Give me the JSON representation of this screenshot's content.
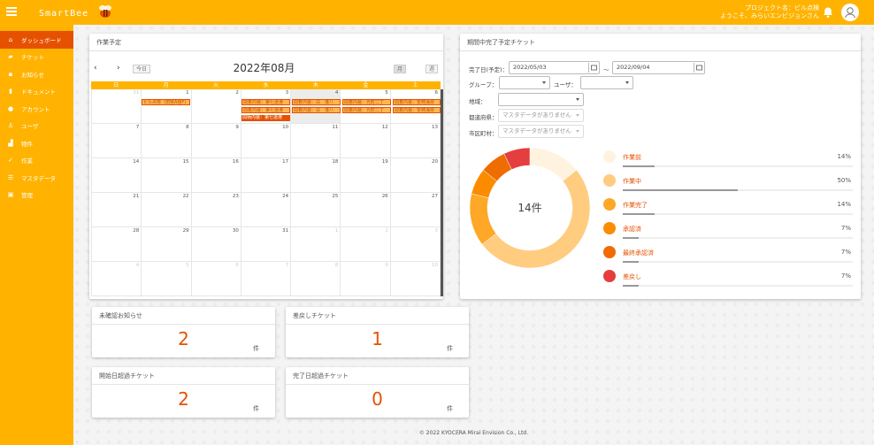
{
  "header": {
    "logo_text": "SmartBee",
    "project_line": "プロジェクト名：ビル点検",
    "welcome_line": "ようこそ、みらいエンビジョンさん"
  },
  "sidebar": {
    "items": [
      {
        "label": "ダッシュボード",
        "icon": "home-icon"
      },
      {
        "label": "チケット",
        "icon": "ticket-icon"
      },
      {
        "label": "お知らせ",
        "icon": "chat-icon"
      },
      {
        "label": "ドキュメント",
        "icon": "document-icon"
      },
      {
        "label": "アカウント",
        "icon": "account-icon"
      },
      {
        "label": "ユーザ",
        "icon": "user-icon"
      },
      {
        "label": "物件",
        "icon": "building-icon"
      },
      {
        "label": "作業",
        "icon": "check-icon"
      },
      {
        "label": "マスタデータ",
        "icon": "list-icon"
      },
      {
        "label": "管理",
        "icon": "settings-icon"
      }
    ]
  },
  "calendar": {
    "card_title": "作業予定",
    "prev": "‹",
    "next": "›",
    "today_label": "今日",
    "month_title": "2022年08月",
    "month_view_label": "月",
    "week_view_label": "週",
    "weekdays": [
      "日",
      "月",
      "火",
      "水",
      "木",
      "金",
      "土"
    ],
    "weeks": [
      [
        "31",
        "1",
        "2",
        "3",
        "4",
        "5",
        "6"
      ],
      [
        "7",
        "8",
        "9",
        "10",
        "11",
        "12",
        "13"
      ],
      [
        "14",
        "15",
        "16",
        "17",
        "18",
        "19",
        "20"
      ],
      [
        "21",
        "22",
        "23",
        "24",
        "25",
        "26",
        "27"
      ],
      [
        "28",
        "29",
        "30",
        "31",
        "1",
        "2",
        "3"
      ],
      [
        "4",
        "5",
        "6",
        "7",
        "8",
        "9",
        "10"
      ]
    ],
    "events": {
      "e1": "ビル点検（田宮A館F)",
      "e2": "間着内装：第七道港",
      "e3": "間着内装：白　湊八",
      "e4": "間着内装：光町二丁",
      "e5": "間着内装：安崎海翠",
      "e6": "間着内装：第七道港",
      "e7": "間着内装：白　湊八",
      "e8": "間着内装：光町二丁",
      "e9": "間着内装：安崎海翠",
      "e10": "間柄内装：第七道港"
    }
  },
  "period": {
    "card_title": "期間中完了予定チケット",
    "end_date_label": "完了日(予定)：",
    "date_from": "2022/05/03",
    "range_sep": "～",
    "date_to": "2022/09/04",
    "group_label": "グループ：",
    "user_label": "ユーザ：",
    "region_label": "地域：",
    "pref_label": "都道府県：",
    "pref_value": "マスタデータがありません",
    "city_label": "市区町村：",
    "city_value": "マスタデータがありません",
    "center_label": "14件",
    "legend": [
      {
        "label": "作業前",
        "pct": "14%",
        "value": 14,
        "color": "#fff3e0"
      },
      {
        "label": "作業中",
        "pct": "50%",
        "value": 50,
        "color": "#ffcc80"
      },
      {
        "label": "作業完了",
        "pct": "14%",
        "value": 14,
        "color": "#ffa726"
      },
      {
        "label": "承認済",
        "pct": "7%",
        "value": 7,
        "color": "#fb8c00"
      },
      {
        "label": "最終承認済",
        "pct": "7%",
        "value": 7,
        "color": "#ef6c00"
      },
      {
        "label": "差戻し",
        "pct": "7%",
        "value": 7,
        "color": "#e53e3e"
      }
    ]
  },
  "stats": {
    "unconfirmed_title": "未確認お知らせ",
    "unconfirmed_value": "2",
    "returned_title": "差戻しチケット",
    "returned_value": "1",
    "start_over_title": "開始日超過チケット",
    "start_over_value": "2",
    "end_over_title": "完了日超過チケット",
    "end_over_value": "0",
    "unit": "件"
  },
  "footer": {
    "text": "© 2022 KYOCERA Mirai Envision Co., Ltd."
  }
}
